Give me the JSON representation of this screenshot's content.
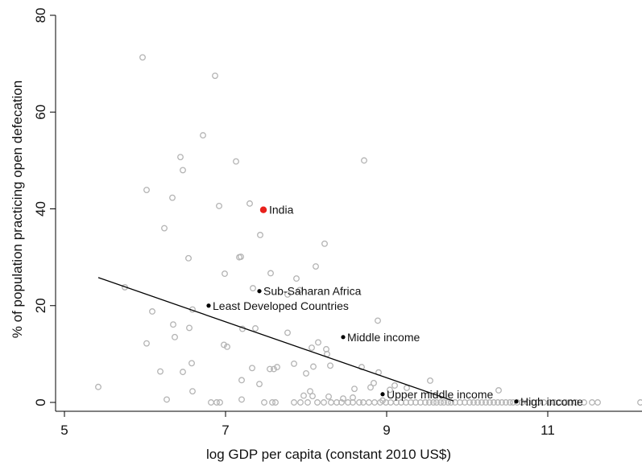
{
  "chart_data": {
    "type": "scatter",
    "title": "",
    "xlabel": "log GDP  per capita (constant 2010 US$)",
    "ylabel": "% of population practicing open defecation",
    "xlim": [
      5,
      12.2
    ],
    "ylim": [
      0,
      80
    ],
    "xticks": [
      5,
      7,
      9,
      11
    ],
    "yticks": [
      0,
      20,
      40,
      60,
      80
    ],
    "grid": false,
    "legend": "none",
    "colors": {
      "country_points": "#b4b4b4",
      "highlight": "#e8211c",
      "groups": "#000000",
      "fit_line": "#000000",
      "axes": "#000000"
    },
    "fit_line": {
      "x": [
        5.42,
        9.83
      ],
      "y": [
        25.8,
        0.3
      ]
    },
    "highlight": {
      "label": "India",
      "x": 7.47,
      "y": 39.8
    },
    "groups": [
      {
        "label": "Sub-Saharan Africa",
        "x": 7.42,
        "y": 23.0
      },
      {
        "label": "Least Developed Countries",
        "x": 6.79,
        "y": 20.0
      },
      {
        "label": "Middle income",
        "x": 8.46,
        "y": 13.5
      },
      {
        "label": "Upper middle income",
        "x": 8.95,
        "y": 1.7
      },
      {
        "label": "High income",
        "x": 10.61,
        "y": 0.2
      }
    ],
    "countries": {
      "x": [
        5.97,
        6.87,
        6.72,
        6.44,
        6.47,
        7.13,
        8.72,
        6.02,
        6.34,
        7.3,
        6.92,
        6.24,
        7.43,
        6.54,
        7.19,
        7.17,
        8.23,
        8.12,
        7.56,
        6.99,
        7.88,
        7.92,
        5.75,
        7.34,
        7.77,
        6.09,
        6.59,
        6.35,
        7.37,
        6.55,
        8.15,
        8.89,
        7.21,
        7.77,
        6.37,
        8.25,
        6.98,
        7.02,
        6.02,
        8.26,
        7.33,
        6.47,
        7.55,
        8.09,
        8.3,
        7.85,
        8.07,
        6.58,
        6.19,
        5.42,
        8.69,
        7.64,
        7.6,
        7.2,
        8.0,
        7.42,
        8.05,
        8.84,
        9.04,
        8.6,
        6.59,
        9.54,
        10.39,
        8.58,
        8.08,
        7.97,
        9.25,
        9.1,
        8.9,
        8.28,
        8.8,
        6.27,
        8.46,
        7.2,
        8.95,
        12.15
      ]
    },
    "countries_y": [
      71.3,
      67.5,
      55.2,
      50.7,
      48.0,
      49.8,
      50.0,
      43.9,
      42.3,
      41.1,
      40.6,
      36.0,
      34.6,
      29.8,
      30.1,
      30.0,
      32.8,
      28.1,
      26.7,
      26.6,
      25.6,
      23.2,
      23.8,
      23.6,
      22.3,
      18.8,
      19.2,
      16.1,
      15.3,
      15.4,
      12.4,
      16.9,
      15.2,
      14.4,
      13.5,
      11.0,
      11.9,
      11.5,
      12.2,
      10.0,
      7.1,
      6.3,
      6.9,
      7.4,
      7.6,
      8.0,
      11.3,
      8.1,
      6.4,
      3.2,
      7.3,
      7.3,
      6.9,
      4.6,
      6.0,
      3.8,
      2.3,
      4.0,
      2.6,
      2.8,
      2.3,
      4.5,
      2.5,
      1.0,
      1.3,
      1.4,
      3.0,
      3.5,
      6.2,
      1.2,
      3.1,
      0.6,
      0.8,
      0.6,
      0.4,
      0.0
    ],
    "zero_cluster_x": [
      6.82,
      6.89,
      6.93,
      7.48,
      7.58,
      7.62,
      7.85,
      7.93,
      8.02,
      8.14,
      8.22,
      8.31,
      8.38,
      8.44,
      8.52,
      8.58,
      8.66,
      8.71,
      8.78,
      8.85,
      8.92,
      8.99,
      9.05,
      9.12,
      9.18,
      9.24,
      9.3,
      9.36,
      9.42,
      9.48,
      9.53,
      9.58,
      9.62,
      9.67,
      9.71,
      9.76,
      9.8,
      9.85,
      9.91,
      9.97,
      10.03,
      10.08,
      10.13,
      10.18,
      10.23,
      10.28,
      10.33,
      10.38,
      10.43,
      10.48,
      10.53,
      10.57,
      10.62,
      10.68,
      10.75,
      10.82,
      10.88,
      10.95,
      11.02,
      11.08,
      11.15,
      11.22,
      11.28,
      11.35,
      11.45,
      11.55,
      11.62
    ]
  }
}
